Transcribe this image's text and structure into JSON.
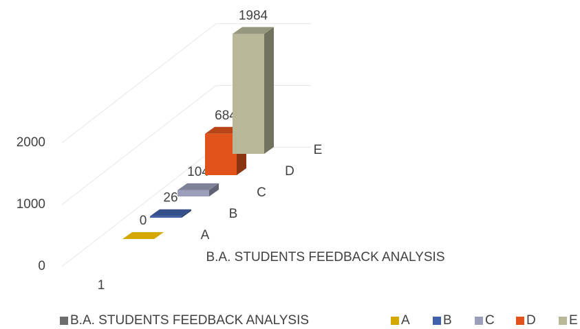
{
  "chart_data": {
    "type": "bar3d",
    "categories": [
      "1"
    ],
    "depth_axis_label": "B.A. STUDENTS FEEDBACK ANALYSIS",
    "legend_extra": {
      "name": "B.A. STUDENTS FEEDBACK ANALYSIS",
      "color": "#6d6d6d"
    },
    "series": [
      {
        "name": "A",
        "color": "#d4a800",
        "values": [
          0
        ]
      },
      {
        "name": "B",
        "color": "#4160aa",
        "values": [
          26
        ]
      },
      {
        "name": "C",
        "color": "#9b9db9",
        "values": [
          104
        ]
      },
      {
        "name": "D",
        "color": "#e0541c",
        "values": [
          684
        ]
      },
      {
        "name": "E",
        "color": "#b8b898",
        "values": [
          1984
        ]
      }
    ],
    "ylim": [
      0,
      2000
    ],
    "yticks": [
      0,
      1000,
      2000
    ],
    "grid": true,
    "legend": "bottom"
  }
}
